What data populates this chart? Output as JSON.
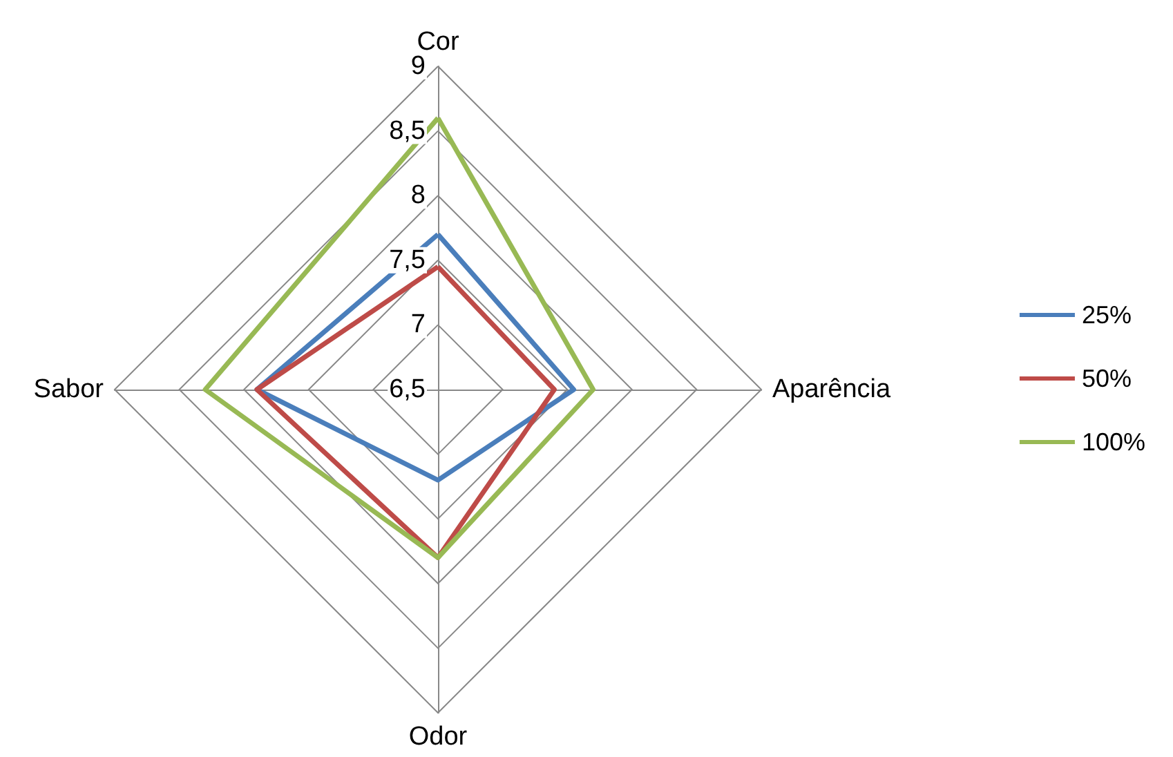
{
  "chart_data": {
    "type": "radar",
    "categories": [
      "Cor",
      "Aparência",
      "Odor",
      "Sabor"
    ],
    "series": [
      {
        "name": "25%",
        "color": "#4a7ebb",
        "values": [
          7.7,
          7.55,
          7.2,
          7.9
        ]
      },
      {
        "name": "50%",
        "color": "#be4b48",
        "values": [
          7.45,
          7.4,
          7.8,
          7.9
        ]
      },
      {
        "name": "100%",
        "color": "#98b954",
        "values": [
          8.6,
          7.7,
          7.8,
          8.3
        ]
      }
    ],
    "ylim": [
      6.5,
      9
    ],
    "yticks": [
      {
        "value": 6.5,
        "label": "6,5"
      },
      {
        "value": 7,
        "label": "7"
      },
      {
        "value": 7.5,
        "label": "7,5"
      },
      {
        "value": 8,
        "label": "8"
      },
      {
        "value": 8.5,
        "label": "8,5"
      },
      {
        "value": 9,
        "label": "9"
      }
    ],
    "legend": "right",
    "marker": "none"
  }
}
